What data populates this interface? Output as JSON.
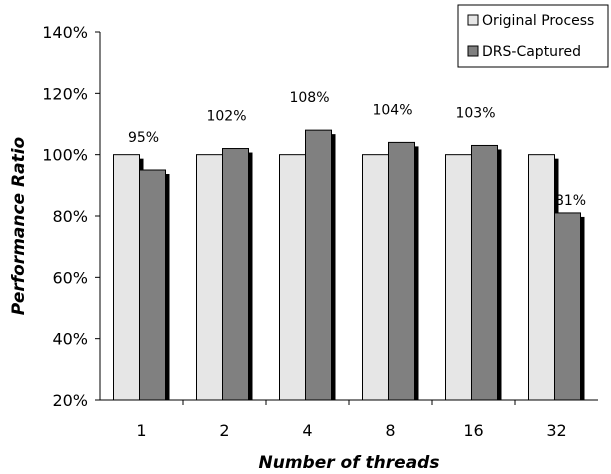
{
  "chart_data": {
    "type": "bar",
    "categories": [
      "1",
      "2",
      "4",
      "8",
      "16",
      "32"
    ],
    "series": [
      {
        "name": "Original Process",
        "values": [
          100,
          100,
          100,
          100,
          100,
          100
        ],
        "color": "#e6e6e6"
      },
      {
        "name": "DRS-Captured",
        "values": [
          95,
          102,
          108,
          104,
          103,
          81
        ],
        "color": "#808080"
      }
    ],
    "data_labels": [
      "95%",
      "102%",
      "108%",
      "104%",
      "103%",
      "81%"
    ],
    "ylim": [
      20,
      140
    ],
    "yticks": [
      20,
      40,
      60,
      80,
      100,
      120,
      140
    ],
    "ytick_labels": [
      "20%",
      "40%",
      "60%",
      "80%",
      "100%",
      "120%",
      "140%"
    ],
    "xlabel": "Number of threads",
    "ylabel": "Performance Ratio",
    "legend_position": "top-right",
    "grid": false
  }
}
